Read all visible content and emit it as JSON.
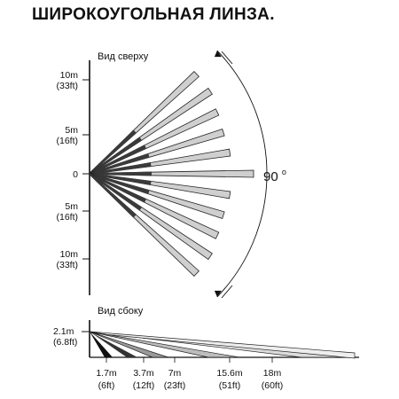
{
  "title": "ШИРОКОУГОЛЬНАЯ ЛИНЗА.",
  "top_view": {
    "label": "Вид сверху",
    "y_ticks": [
      {
        "value": 10,
        "line1": "10m",
        "line2": "(33ft)"
      },
      {
        "value": 5,
        "line1": "5m",
        "line2": "(16ft)"
      },
      {
        "value": 0,
        "line1": "0",
        "line2": ""
      },
      {
        "value": -5,
        "line1": "5m",
        "line2": "(16ft)"
      },
      {
        "value": -10,
        "line1": "10m",
        "line2": "(33ft)"
      }
    ],
    "angle": "90",
    "angle_unit": "o",
    "zone_count": 11
  },
  "side_view": {
    "label": "Вид сбоку",
    "height_line1": "2.1m",
    "height_line2": "(6.8ft)",
    "distances": [
      {
        "line1": "1.7m",
        "line2": "(6ft)"
      },
      {
        "line1": "3.7m",
        "line2": "(12ft)"
      },
      {
        "line1": "7m",
        "line2": "(23ft)"
      },
      {
        "line1": "15.6m",
        "line2": "(51ft)"
      },
      {
        "line1": "18m",
        "line2": "(60ft)"
      }
    ]
  },
  "colors": {
    "zone_fill": "#cfcfcf",
    "zone_dark": "#3a3a3a",
    "line": "#111111"
  }
}
